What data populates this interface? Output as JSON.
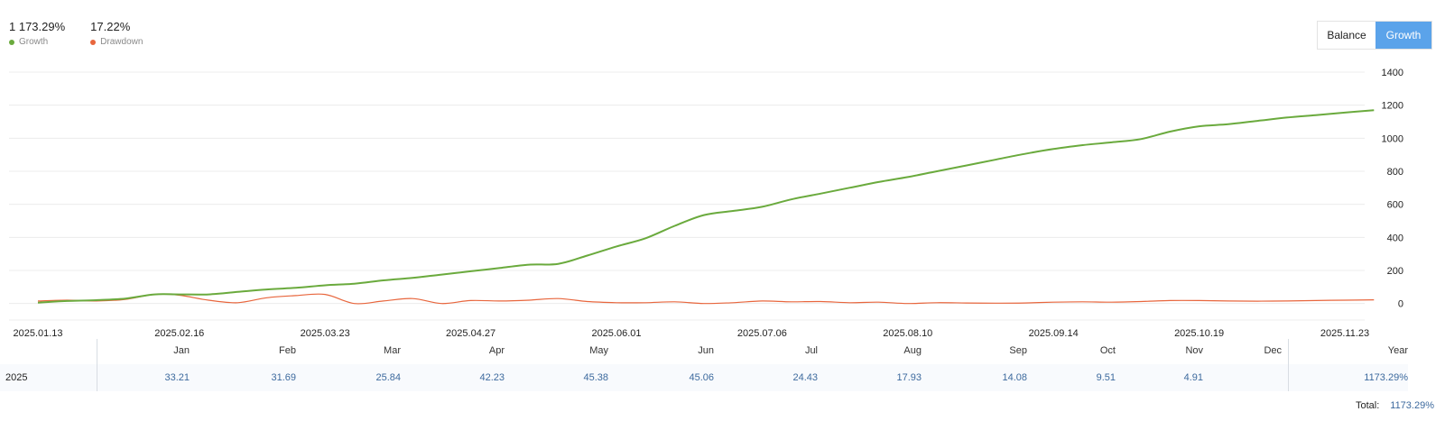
{
  "summary": {
    "growth_value": "1 173.29%",
    "growth_label": "Growth",
    "drawdown_value": "17.22%",
    "drawdown_label": "Drawdown"
  },
  "toggle": {
    "balance_label": "Balance",
    "growth_label": "Growth",
    "active": "Growth"
  },
  "colors": {
    "growth": "#6aaa3d",
    "drawdown": "#e8663d",
    "accent": "#5ba3ea",
    "grid": "#ececec"
  },
  "chart_data": {
    "type": "line",
    "ylim": [
      -100,
      1400
    ],
    "y_ticks": [
      "0",
      "200",
      "400",
      "600",
      "800",
      "1000",
      "1200",
      "1400"
    ],
    "x_ticks": [
      "2025.01.13",
      "2025.02.16",
      "2025.03.23",
      "2025.04.27",
      "2025.06.01",
      "2025.07.06",
      "2025.08.10",
      "2025.09.14",
      "2025.10.19",
      "2025.11.23"
    ],
    "series": [
      {
        "name": "Growth",
        "points": [
          [
            "2025.01.13",
            5
          ],
          [
            "2025.01.20",
            15
          ],
          [
            "2025.01.27",
            20
          ],
          [
            "2025.02.03",
            30
          ],
          [
            "2025.02.10",
            55
          ],
          [
            "2025.02.16",
            55
          ],
          [
            "2025.02.23",
            55
          ],
          [
            "2025.03.02",
            70
          ],
          [
            "2025.03.09",
            85
          ],
          [
            "2025.03.16",
            95
          ],
          [
            "2025.03.23",
            110
          ],
          [
            "2025.03.30",
            120
          ],
          [
            "2025.04.06",
            140
          ],
          [
            "2025.04.13",
            155
          ],
          [
            "2025.04.20",
            175
          ],
          [
            "2025.04.27",
            195
          ],
          [
            "2025.05.04",
            215
          ],
          [
            "2025.05.11",
            235
          ],
          [
            "2025.05.18",
            240
          ],
          [
            "2025.05.25",
            290
          ],
          [
            "2025.06.01",
            345
          ],
          [
            "2025.06.08",
            395
          ],
          [
            "2025.06.15",
            470
          ],
          [
            "2025.06.22",
            535
          ],
          [
            "2025.06.29",
            560
          ],
          [
            "2025.07.06",
            585
          ],
          [
            "2025.07.13",
            630
          ],
          [
            "2025.07.20",
            665
          ],
          [
            "2025.07.27",
            700
          ],
          [
            "2025.08.03",
            735
          ],
          [
            "2025.08.10",
            765
          ],
          [
            "2025.08.17",
            800
          ],
          [
            "2025.08.24",
            835
          ],
          [
            "2025.08.31",
            870
          ],
          [
            "2025.09.07",
            905
          ],
          [
            "2025.09.14",
            935
          ],
          [
            "2025.09.21",
            958
          ],
          [
            "2025.09.28",
            975
          ],
          [
            "2025.10.05",
            995
          ],
          [
            "2025.10.12",
            1040
          ],
          [
            "2025.10.19",
            1072
          ],
          [
            "2025.10.26",
            1085
          ],
          [
            "2025.11.02",
            1105
          ],
          [
            "2025.11.09",
            1125
          ],
          [
            "2025.11.16",
            1140
          ],
          [
            "2025.11.23",
            1155
          ],
          [
            "2025.11.30",
            1170
          ]
        ]
      },
      {
        "name": "Drawdown",
        "points": [
          [
            "2025.01.13",
            15
          ],
          [
            "2025.01.20",
            20
          ],
          [
            "2025.01.27",
            15
          ],
          [
            "2025.02.03",
            25
          ],
          [
            "2025.02.10",
            55
          ],
          [
            "2025.02.16",
            50
          ],
          [
            "2025.02.23",
            20
          ],
          [
            "2025.03.02",
            5
          ],
          [
            "2025.03.09",
            35
          ],
          [
            "2025.03.16",
            48
          ],
          [
            "2025.03.23",
            55
          ],
          [
            "2025.03.30",
            0
          ],
          [
            "2025.04.06",
            15
          ],
          [
            "2025.04.13",
            30
          ],
          [
            "2025.04.20",
            0
          ],
          [
            "2025.04.27",
            18
          ],
          [
            "2025.05.04",
            15
          ],
          [
            "2025.05.11",
            20
          ],
          [
            "2025.05.18",
            30
          ],
          [
            "2025.05.25",
            12
          ],
          [
            "2025.06.01",
            5
          ],
          [
            "2025.06.08",
            5
          ],
          [
            "2025.06.15",
            10
          ],
          [
            "2025.06.22",
            0
          ],
          [
            "2025.06.29",
            5
          ],
          [
            "2025.07.06",
            15
          ],
          [
            "2025.07.13",
            10
          ],
          [
            "2025.07.20",
            12
          ],
          [
            "2025.07.27",
            5
          ],
          [
            "2025.08.03",
            8
          ],
          [
            "2025.08.10",
            0
          ],
          [
            "2025.08.17",
            5
          ],
          [
            "2025.08.24",
            3
          ],
          [
            "2025.08.31",
            2
          ],
          [
            "2025.09.07",
            3
          ],
          [
            "2025.09.14",
            8
          ],
          [
            "2025.09.21",
            10
          ],
          [
            "2025.09.28",
            8
          ],
          [
            "2025.10.05",
            12
          ],
          [
            "2025.10.12",
            18
          ],
          [
            "2025.10.19",
            18
          ],
          [
            "2025.10.26",
            15
          ],
          [
            "2025.11.02",
            14
          ],
          [
            "2025.11.09",
            15
          ],
          [
            "2025.11.16",
            18
          ],
          [
            "2025.11.23",
            20
          ],
          [
            "2025.11.30",
            22
          ]
        ]
      }
    ]
  },
  "table": {
    "months": [
      "Jan",
      "Feb",
      "Mar",
      "Apr",
      "May",
      "Jun",
      "Jul",
      "Aug",
      "Sep",
      "Oct",
      "Nov",
      "Dec"
    ],
    "year_header": "Year",
    "rows": [
      {
        "year": "2025",
        "values": [
          "33.21",
          "31.69",
          "25.84",
          "42.23",
          "45.38",
          "45.06",
          "24.43",
          "17.93",
          "14.08",
          "9.51",
          "4.91",
          ""
        ],
        "total": "1173.29%"
      }
    ],
    "total_label": "Total:",
    "total_value": "1173.29%"
  }
}
